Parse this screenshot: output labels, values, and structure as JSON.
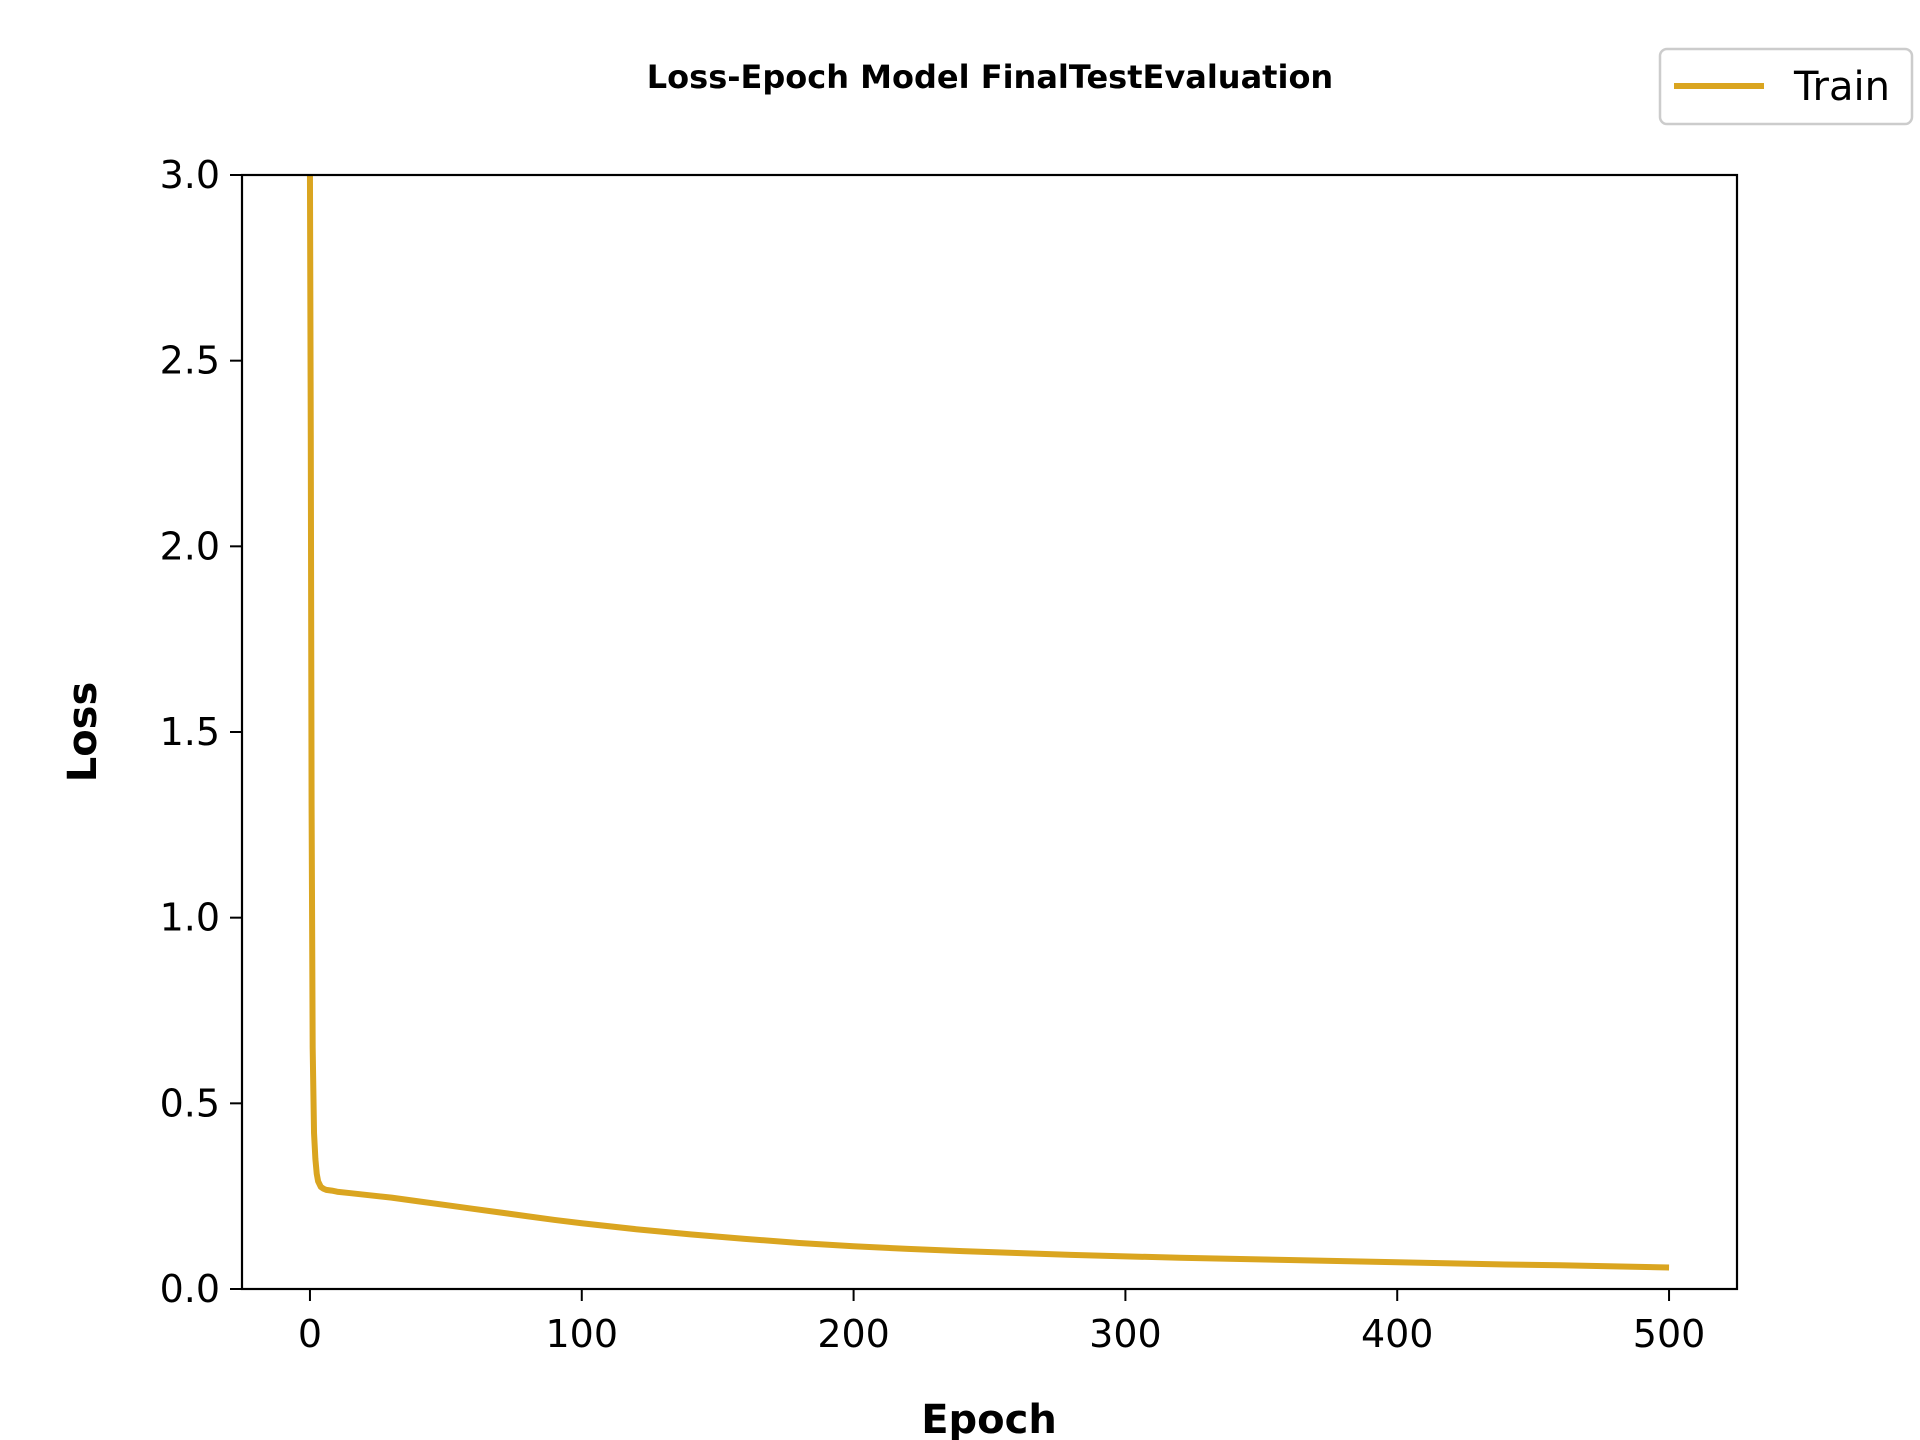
{
  "chart_data": {
    "type": "line",
    "title": "Loss-Epoch Model FinalTestEvaluation",
    "xlabel": "Epoch",
    "ylabel": "Loss",
    "xlim": [
      -25,
      525
    ],
    "ylim": [
      0,
      3.0
    ],
    "xticks": [
      0,
      100,
      200,
      300,
      400,
      500
    ],
    "xtick_labels": [
      "0",
      "100",
      "200",
      "300",
      "400",
      "500"
    ],
    "yticks": [
      0,
      0.5,
      1.0,
      1.5,
      2.0,
      2.5,
      3.0
    ],
    "ytick_labels": [
      "0.0",
      "0.5",
      "1.0",
      "1.5",
      "2.0",
      "2.5",
      "3.0"
    ],
    "grid": false,
    "legend_position": "top-right",
    "series": [
      {
        "name": "Train",
        "color": "#DAA520",
        "x": [
          0,
          0.3,
          0.6,
          1,
          1.5,
          2,
          2.5,
          3,
          4,
          5,
          6,
          8,
          10,
          15,
          20,
          30,
          40,
          50,
          60,
          70,
          80,
          90,
          100,
          120,
          140,
          160,
          180,
          200,
          220,
          240,
          260,
          280,
          300,
          320,
          340,
          360,
          380,
          400,
          420,
          440,
          460,
          480,
          500
        ],
        "y": [
          3.0,
          2.3,
          1.3,
          0.65,
          0.42,
          0.35,
          0.31,
          0.29,
          0.275,
          0.27,
          0.267,
          0.265,
          0.262,
          0.258,
          0.254,
          0.246,
          0.236,
          0.226,
          0.216,
          0.206,
          0.196,
          0.186,
          0.177,
          0.161,
          0.147,
          0.135,
          0.124,
          0.115,
          0.108,
          0.102,
          0.097,
          0.092,
          0.088,
          0.084,
          0.081,
          0.078,
          0.075,
          0.072,
          0.069,
          0.066,
          0.064,
          0.061,
          0.058
        ]
      }
    ]
  }
}
